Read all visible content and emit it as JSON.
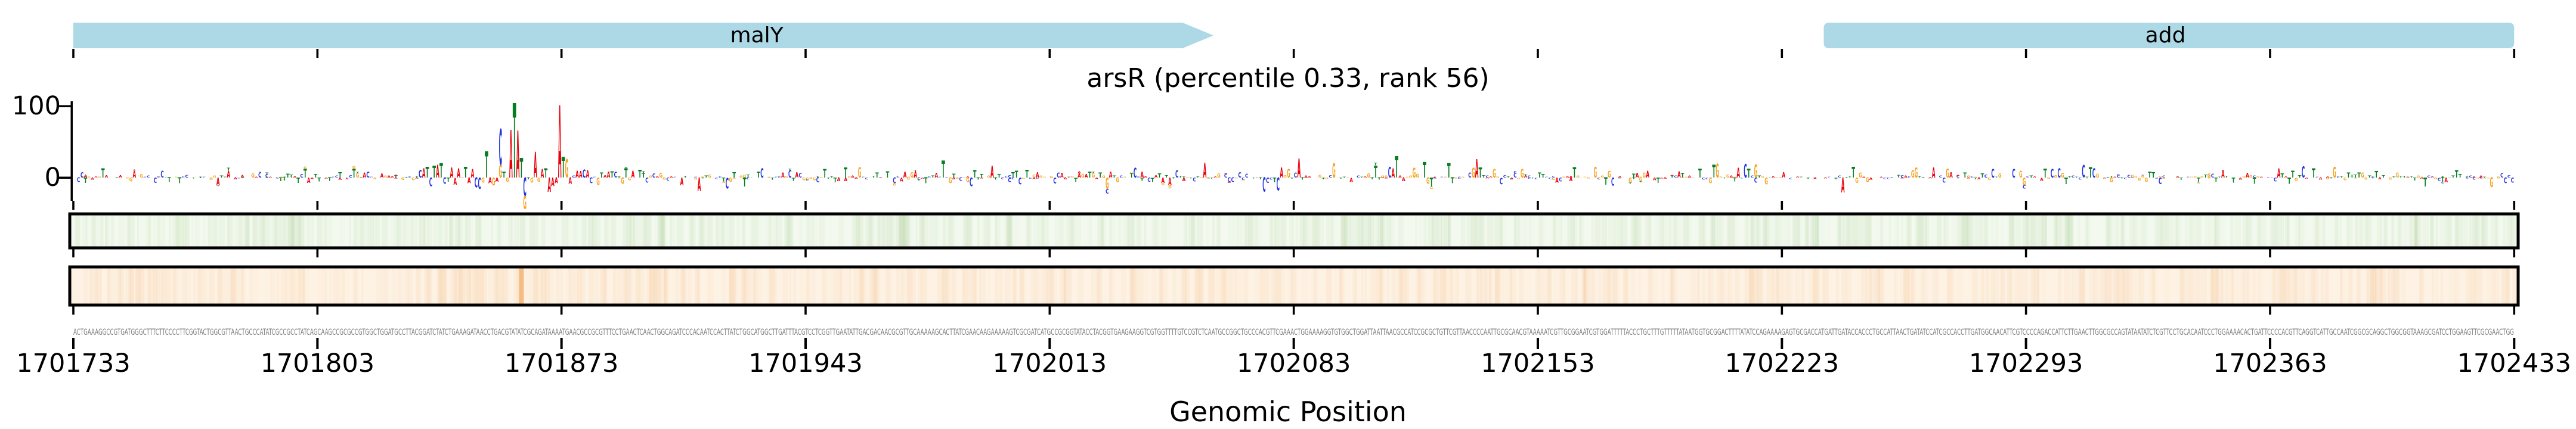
{
  "title": "arsR (percentile 0.33, rank 56)",
  "yaxis": {
    "tick_labels": [
      "100",
      "0"
    ],
    "values": [
      100,
      0
    ]
  },
  "chart_data": {
    "type": "genome-tracks",
    "title": "arsR (percentile 0.33, rank 56)",
    "axis": {
      "label": "Genomic Position",
      "start": 1701733,
      "end": 1702433,
      "tick_interval": 70,
      "ticks": [
        1701733,
        1701803,
        1701873,
        1701943,
        1702013,
        1702083,
        1702153,
        1702223,
        1702293,
        1702363,
        1702433
      ]
    },
    "yaxis": {
      "ticks": [
        0,
        100
      ],
      "max_shown": 100
    },
    "genes": [
      {
        "label": "malY",
        "start": 1701733,
        "end": 1702060,
        "tip": true,
        "label_bp": 1701929
      },
      {
        "label": "add",
        "start": 1702235,
        "end": 1702433,
        "tip": false,
        "label_bp": 1702333
      }
    ],
    "colors": {
      "gene_fill": "#add8e6",
      "A": "#e8000b",
      "C": "#2232dd",
      "G": "#f5a31e",
      "T": "#067d21",
      "track1_fill": "#f3f9ef",
      "track1_stripe_rgb": "140,190,110",
      "track2_fill": "#fdf2e4",
      "track2_stripe_rgb": "235,150,60",
      "sequence_text": "#7a7a7a",
      "axis": "#000000"
    },
    "logo": {
      "baseline_value": 0,
      "letters": [
        [
          1701832,
          "C",
          11
        ],
        [
          1701833,
          "A",
          13
        ],
        [
          1701834,
          "T",
          15
        ],
        [
          1701835,
          "C",
          -12
        ],
        [
          1701836,
          "T",
          17
        ],
        [
          1701837,
          "A",
          18
        ],
        [
          1701838,
          "T",
          20
        ],
        [
          1701839,
          "C",
          -9
        ],
        [
          1701840,
          "T",
          -6
        ],
        [
          1701841,
          "A",
          14
        ],
        [
          1701842,
          "A",
          -10
        ],
        [
          1701843,
          "A",
          13
        ],
        [
          1701845,
          "T",
          15
        ],
        [
          1701846,
          "A",
          -8
        ],
        [
          1701847,
          "A",
          12
        ],
        [
          1701848,
          "C",
          -14
        ],
        [
          1701849,
          "C",
          -16
        ],
        [
          1701850,
          "G",
          -7
        ],
        [
          1701851,
          "T",
          37
        ],
        [
          1701852,
          "A",
          -8
        ],
        [
          1701853,
          "G",
          -11
        ],
        [
          1701854,
          "A",
          -6
        ],
        [
          1701855,
          "G",
          18
        ],
        [
          1701855,
          "C",
          50
        ],
        [
          1701856,
          "T",
          8
        ],
        [
          1701857,
          "G",
          -6
        ],
        [
          1701858,
          "A",
          67
        ],
        [
          1701859,
          "T",
          105
        ],
        [
          1701860,
          "A",
          66
        ],
        [
          1701861,
          "T",
          28
        ],
        [
          1701862,
          "C",
          -26
        ],
        [
          1701862,
          "G",
          -18
        ],
        [
          1701864,
          "G",
          -7
        ],
        [
          1701865,
          "A",
          36
        ],
        [
          1701866,
          "G",
          -6
        ],
        [
          1701867,
          "A",
          12
        ],
        [
          1701868,
          "T",
          13
        ],
        [
          1701869,
          "A",
          -20
        ],
        [
          1701870,
          "A",
          -12
        ],
        [
          1701871,
          "A",
          -8
        ],
        [
          1701872,
          "A",
          102
        ],
        [
          1701873,
          "T",
          29
        ],
        [
          1701874,
          "G",
          26
        ],
        [
          1701875,
          "A",
          -9
        ],
        [
          1701877,
          "A",
          10
        ],
        [
          1701878,
          "A",
          9
        ],
        [
          1701881,
          "C",
          -8
        ],
        [
          1701884,
          "T",
          7
        ],
        [
          1701886,
          "A",
          8
        ],
        [
          1701888,
          "C",
          8
        ],
        [
          1701890,
          "G",
          -9
        ],
        [
          1701893,
          "A",
          10
        ],
        [
          1701895,
          "T",
          11
        ],
        [
          1701897,
          "C",
          -7
        ],
        [
          1701982,
          "T",
          24
        ],
        [
          1701984,
          "G",
          -8
        ],
        [
          1701990,
          "C",
          -12
        ],
        [
          1701996,
          "A",
          17
        ],
        [
          1702078,
          "C",
          -18
        ],
        [
          1702079,
          "A",
          14
        ],
        [
          1702084,
          "A",
          27
        ],
        [
          1702110,
          "C",
          15
        ],
        [
          1702111,
          "A",
          13
        ],
        [
          1702112,
          "T",
          30
        ],
        [
          1702120,
          "T",
          22
        ],
        [
          1702121,
          "G",
          -9
        ],
        [
          1702127,
          "T",
          20
        ],
        [
          1702128,
          "T",
          -8
        ],
        [
          1702135,
          "A",
          26
        ],
        [
          1702136,
          "T",
          14
        ],
        [
          1702140,
          "G",
          12
        ],
        [
          1702203,
          "T",
          18
        ],
        [
          1702243,
          "T",
          15
        ],
        [
          1702266,
          "A",
          14
        ]
      ],
      "noise": {
        "seed": 123456789,
        "max_abs_value": 21,
        "positive_fraction": 0.6
      }
    },
    "heatmap_tracks": [
      {
        "name": "track1-green",
        "stripes": []
      },
      {
        "name": "track2-orange",
        "stripes": [
          [
            1701839,
            2.4,
            0.1
          ],
          [
            1701849,
            5.2,
            0.07
          ],
          [
            1701856,
            3.4,
            0.08
          ],
          [
            1701861.5,
            1.4,
            0.52
          ],
          [
            1701899,
            1.8,
            0.12
          ],
          [
            1701922,
            2.0,
            0.1
          ]
        ]
      }
    ],
    "sequence": "ACTGAAAGGCCGTGATGGGCTTTCTTCCCCTTCGGTACTGGCGTTAACTGCCCATATCGCCGCCTATCAGCAAGCCGCGCCGTGGCTGGATGCCTTACGGATCTATCTGAAAGATAACCTGACGTATATCGCAGATAAAATGAACGCCGCGTTTCCTGAACTCAACTGGCAGATCCCACAATCCACTTATCTGGCATGGCTTGATTTACGTCCTCGGTTGAATATTGACGACAACGCGTTGCAAAAAGCACTTATCGAACAAGAAAAAGTCGCGATCATGCCGCGGTATACCTACGGTGAAGAAGGTCGTGGTTTTGTCCGTCTCAATGCCGGCTGCCCACGTTCGAAACTGGAAAAGGTGTGGCTGGATTAATTAACGCCATCCGCGCTGTTCGTTAACCCCAATTGCGCAACGTAAAAATCGTTGCGGAATCGTGGATTTTTACCCTGCTTTGTTTTTATAATGGTGCGGACTTTTATATCCAGAAAAGAGTGCGACCATGATTGATACCACCCTGCCATTAACTGATATCCATCGCCACCTTGATGGCAACATTCGTCCCCAGACCATTCTTGAACTTGGCGCCAGTATAATATCTCGTTCCTGCACAATCCCTGGAAAACACTGATTCCCCACGTTCAGGTCATTGCCAATCGGCGCAGGCTGGCGGTAAAGCGATCCTGGAAGTTCGCGAACTGG"
  }
}
